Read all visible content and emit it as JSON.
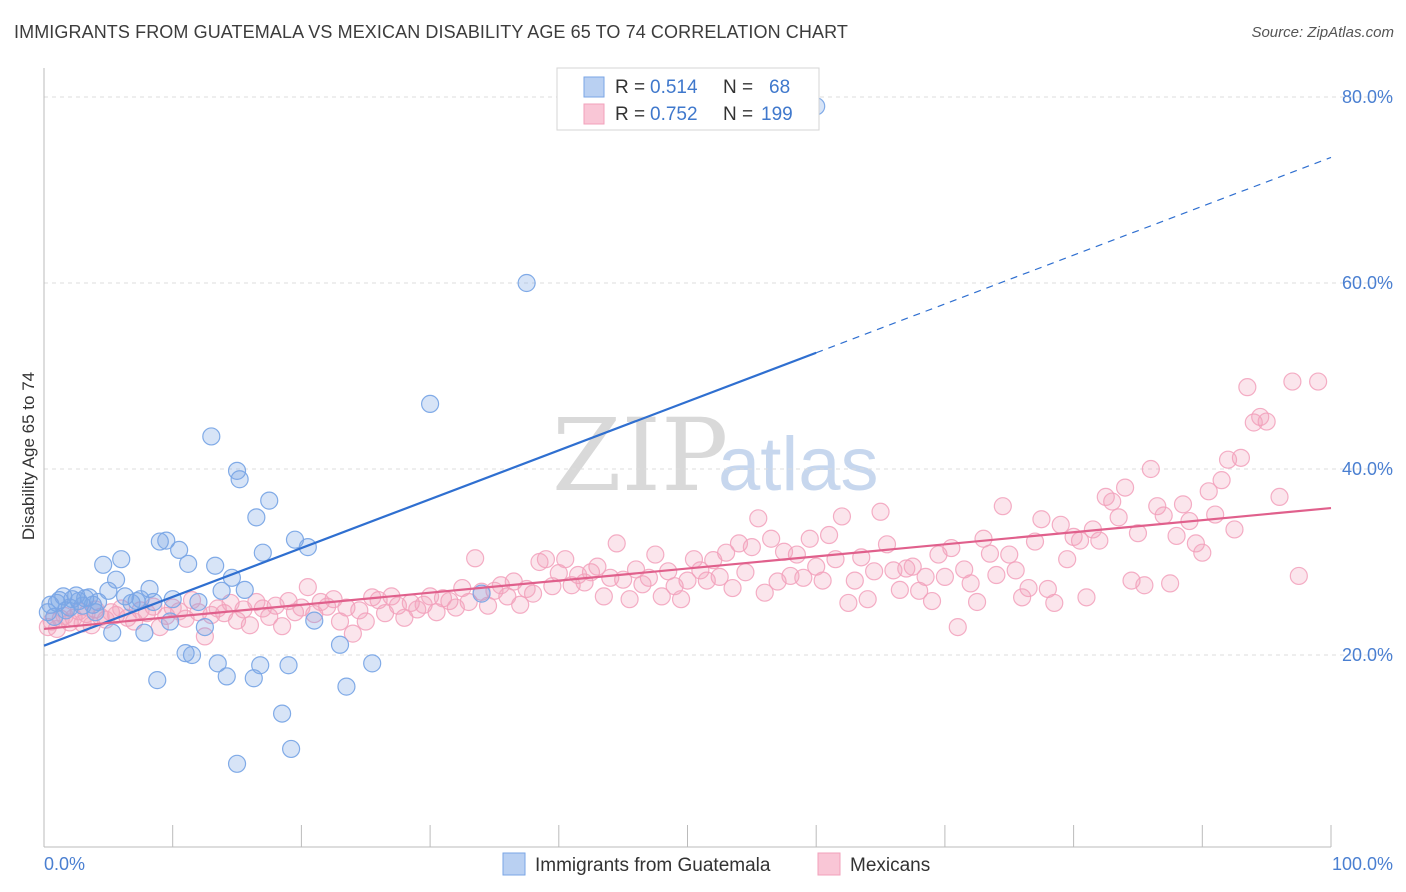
{
  "header": {
    "title": "IMMIGRANTS FROM GUATEMALA VS MEXICAN DISABILITY AGE 65 TO 74 CORRELATION CHART",
    "source": "Source: ZipAtlas.com"
  },
  "watermark": {
    "zip": "ZIP",
    "atlas": "atlas"
  },
  "legend": {
    "rows": [
      {
        "r_label": "R =",
        "r_value": "0.514",
        "n_label": "N =",
        "n_value": "68"
      },
      {
        "r_label": "R =",
        "r_value": "0.752",
        "n_label": "N =",
        "n_value": "199"
      }
    ]
  },
  "bottom_legend": {
    "items": [
      {
        "label": "Immigrants from Guatemala"
      },
      {
        "label": "Mexicans"
      }
    ]
  },
  "chart_data": {
    "type": "scatter",
    "title": "IMMIGRANTS FROM GUATEMALA VS MEXICAN DISABILITY AGE 65 TO 74 CORRELATION CHART",
    "xlabel": "",
    "ylabel": "Disability Age 65 to 74",
    "xlim": [
      0,
      100
    ],
    "ylim": [
      0,
      82
    ],
    "x_tick_labels": [
      "0.0%",
      "100.0%"
    ],
    "y_ticks": [
      20,
      40,
      60,
      80
    ],
    "y_tick_labels": [
      "20.0%",
      "40.0%",
      "60.0%",
      "80.0%"
    ],
    "grid": true,
    "legend_position": "top-center",
    "colors": {
      "guatemala": "#7aa6e6",
      "guatemala_line": "#2f6fd0",
      "mexicans": "#f2a0bb",
      "mexicans_line": "#e0608c"
    },
    "series": [
      {
        "name": "Immigrants from Guatemala",
        "r": 0.514,
        "n": 68,
        "trend": {
          "x": [
            0,
            60
          ],
          "y": [
            21.0,
            52.5
          ],
          "dashed_to": [
            100,
            73.5
          ]
        },
        "points": [
          [
            0.3,
            24.6
          ],
          [
            0.5,
            25.4
          ],
          [
            0.8,
            24.1
          ],
          [
            1.0,
            25.6
          ],
          [
            1.2,
            25.9
          ],
          [
            1.5,
            26.3
          ],
          [
            1.7,
            24.8
          ],
          [
            2.0,
            25.1
          ],
          [
            2.2,
            26.0
          ],
          [
            2.5,
            26.4
          ],
          [
            2.7,
            25.8
          ],
          [
            3.0,
            25.3
          ],
          [
            3.2,
            26.1
          ],
          [
            3.5,
            26.2
          ],
          [
            3.8,
            25.4
          ],
          [
            4.0,
            24.6
          ],
          [
            4.2,
            25.7
          ],
          [
            4.6,
            29.7
          ],
          [
            5.0,
            26.9
          ],
          [
            5.3,
            22.4
          ],
          [
            5.6,
            28.1
          ],
          [
            6.0,
            30.3
          ],
          [
            6.3,
            26.3
          ],
          [
            6.8,
            25.6
          ],
          [
            7.2,
            25.8
          ],
          [
            7.5,
            26.0
          ],
          [
            7.8,
            22.4
          ],
          [
            8.2,
            27.1
          ],
          [
            8.5,
            25.7
          ],
          [
            8.8,
            17.3
          ],
          [
            9.0,
            32.2
          ],
          [
            9.5,
            32.3
          ],
          [
            9.8,
            23.6
          ],
          [
            10.0,
            26.0
          ],
          [
            10.5,
            31.3
          ],
          [
            11.0,
            20.2
          ],
          [
            11.2,
            29.8
          ],
          [
            11.5,
            20.0
          ],
          [
            12.0,
            25.7
          ],
          [
            12.5,
            23.0
          ],
          [
            13.0,
            43.5
          ],
          [
            13.3,
            29.6
          ],
          [
            13.5,
            19.1
          ],
          [
            13.8,
            26.9
          ],
          [
            14.2,
            17.7
          ],
          [
            14.6,
            28.3
          ],
          [
            15.0,
            8.3
          ],
          [
            15.0,
            39.8
          ],
          [
            15.2,
            38.9
          ],
          [
            15.6,
            27.0
          ],
          [
            16.3,
            17.5
          ],
          [
            16.5,
            34.8
          ],
          [
            16.8,
            18.9
          ],
          [
            17.0,
            31.0
          ],
          [
            17.5,
            36.6
          ],
          [
            18.5,
            13.7
          ],
          [
            19.0,
            18.9
          ],
          [
            19.2,
            9.9
          ],
          [
            19.5,
            32.4
          ],
          [
            20.5,
            31.6
          ],
          [
            21.0,
            23.7
          ],
          [
            23.0,
            21.1
          ],
          [
            23.5,
            16.6
          ],
          [
            25.5,
            19.1
          ],
          [
            30.0,
            47.0
          ],
          [
            34.0,
            26.6
          ],
          [
            37.5,
            60.0
          ],
          [
            60.0,
            79.0
          ]
        ]
      },
      {
        "name": "Mexicans",
        "r": 0.752,
        "n": 199,
        "trend": {
          "x": [
            0,
            100
          ],
          "y": [
            22.8,
            35.8
          ]
        },
        "points": [
          [
            0.3,
            23.0
          ],
          [
            0.6,
            23.6
          ],
          [
            1.0,
            22.8
          ],
          [
            1.3,
            23.9
          ],
          [
            1.6,
            24.2
          ],
          [
            2.0,
            23.5
          ],
          [
            2.3,
            24.0
          ],
          [
            2.7,
            24.7
          ],
          [
            3.0,
            23.4
          ],
          [
            3.3,
            24.4
          ],
          [
            3.7,
            23.2
          ],
          [
            4.0,
            24.9
          ],
          [
            4.4,
            24.1
          ],
          [
            4.8,
            23.8
          ],
          [
            5.2,
            24.6
          ],
          [
            5.6,
            24.3
          ],
          [
            6.0,
            25.0
          ],
          [
            6.5,
            24.0
          ],
          [
            7.0,
            23.6
          ],
          [
            7.5,
            24.8
          ],
          [
            8.0,
            24.5
          ],
          [
            8.5,
            25.2
          ],
          [
            9.0,
            23.0
          ],
          [
            9.5,
            24.2
          ],
          [
            10.0,
            25.1
          ],
          [
            10.5,
            24.7
          ],
          [
            11.0,
            23.9
          ],
          [
            11.5,
            25.9
          ],
          [
            12.0,
            24.6
          ],
          [
            12.5,
            22.0
          ],
          [
            13.0,
            24.3
          ],
          [
            13.5,
            25.0
          ],
          [
            14.0,
            24.5
          ],
          [
            14.5,
            25.6
          ],
          [
            15.0,
            23.7
          ],
          [
            15.5,
            24.9
          ],
          [
            16.0,
            23.2
          ],
          [
            16.5,
            25.7
          ],
          [
            17.0,
            25.0
          ],
          [
            17.5,
            24.1
          ],
          [
            18.0,
            25.3
          ],
          [
            18.5,
            23.1
          ],
          [
            19.0,
            25.8
          ],
          [
            19.5,
            24.6
          ],
          [
            20.0,
            25.1
          ],
          [
            20.5,
            27.3
          ],
          [
            21.0,
            24.4
          ],
          [
            21.5,
            25.7
          ],
          [
            22.0,
            25.2
          ],
          [
            22.5,
            26.0
          ],
          [
            23.0,
            23.6
          ],
          [
            23.5,
            25.1
          ],
          [
            24.0,
            22.3
          ],
          [
            24.5,
            24.8
          ],
          [
            25.0,
            23.6
          ],
          [
            25.5,
            26.2
          ],
          [
            26.0,
            25.9
          ],
          [
            26.5,
            24.5
          ],
          [
            27.0,
            26.3
          ],
          [
            27.5,
            25.3
          ],
          [
            28.0,
            24.0
          ],
          [
            28.5,
            25.6
          ],
          [
            29.0,
            24.9
          ],
          [
            29.5,
            25.4
          ],
          [
            30.0,
            26.3
          ],
          [
            30.5,
            24.6
          ],
          [
            31.0,
            26.1
          ],
          [
            31.5,
            25.8
          ],
          [
            32.0,
            25.1
          ],
          [
            32.5,
            27.2
          ],
          [
            33.0,
            25.7
          ],
          [
            33.5,
            30.4
          ],
          [
            34.0,
            26.8
          ],
          [
            34.5,
            25.3
          ],
          [
            35.0,
            26.9
          ],
          [
            35.5,
            27.5
          ],
          [
            36.0,
            26.3
          ],
          [
            36.5,
            27.9
          ],
          [
            37.0,
            25.4
          ],
          [
            37.5,
            27.1
          ],
          [
            38.0,
            26.6
          ],
          [
            38.5,
            30.0
          ],
          [
            39.0,
            30.3
          ],
          [
            39.5,
            27.4
          ],
          [
            40.0,
            28.8
          ],
          [
            40.5,
            30.3
          ],
          [
            41.0,
            27.5
          ],
          [
            41.5,
            28.6
          ],
          [
            42.0,
            27.8
          ],
          [
            42.5,
            28.9
          ],
          [
            43.0,
            29.5
          ],
          [
            43.5,
            26.3
          ],
          [
            44.0,
            28.3
          ],
          [
            44.5,
            32.0
          ],
          [
            45.0,
            28.1
          ],
          [
            45.5,
            26.0
          ],
          [
            46.0,
            29.2
          ],
          [
            46.5,
            27.6
          ],
          [
            47.0,
            28.3
          ],
          [
            47.5,
            30.8
          ],
          [
            48.0,
            26.3
          ],
          [
            48.5,
            29.0
          ],
          [
            49.0,
            27.4
          ],
          [
            49.5,
            26.0
          ],
          [
            50.0,
            28.0
          ],
          [
            50.5,
            30.3
          ],
          [
            51.0,
            29.1
          ],
          [
            51.5,
            28.0
          ],
          [
            52.0,
            30.2
          ],
          [
            52.5,
            28.4
          ],
          [
            53.0,
            31.0
          ],
          [
            53.5,
            27.2
          ],
          [
            54.0,
            32.0
          ],
          [
            54.5,
            28.9
          ],
          [
            55.0,
            31.6
          ],
          [
            55.5,
            34.7
          ],
          [
            56.0,
            26.7
          ],
          [
            56.5,
            32.5
          ],
          [
            57.0,
            27.9
          ],
          [
            57.5,
            31.1
          ],
          [
            58.0,
            28.5
          ],
          [
            58.5,
            30.8
          ],
          [
            59.0,
            28.3
          ],
          [
            59.5,
            32.5
          ],
          [
            60.0,
            29.5
          ],
          [
            60.5,
            28.0
          ],
          [
            61.0,
            32.9
          ],
          [
            61.5,
            30.3
          ],
          [
            62.0,
            34.9
          ],
          [
            62.5,
            25.6
          ],
          [
            63.0,
            28.0
          ],
          [
            63.5,
            30.5
          ],
          [
            64.0,
            26.0
          ],
          [
            64.5,
            29.0
          ],
          [
            65.0,
            35.4
          ],
          [
            65.5,
            31.9
          ],
          [
            66.0,
            29.1
          ],
          [
            66.5,
            27.0
          ],
          [
            67.0,
            29.3
          ],
          [
            67.5,
            29.5
          ],
          [
            68.0,
            26.9
          ],
          [
            68.5,
            28.4
          ],
          [
            69.0,
            25.8
          ],
          [
            69.5,
            30.8
          ],
          [
            70.0,
            28.4
          ],
          [
            70.5,
            31.5
          ],
          [
            71.0,
            23.0
          ],
          [
            71.5,
            29.2
          ],
          [
            72.0,
            27.7
          ],
          [
            72.5,
            25.7
          ],
          [
            73.0,
            32.5
          ],
          [
            73.5,
            30.9
          ],
          [
            74.0,
            28.6
          ],
          [
            74.5,
            36.0
          ],
          [
            75.0,
            30.8
          ],
          [
            75.5,
            29.1
          ],
          [
            76.0,
            26.2
          ],
          [
            76.5,
            27.2
          ],
          [
            77.0,
            32.2
          ],
          [
            77.5,
            34.6
          ],
          [
            78.0,
            27.1
          ],
          [
            78.5,
            25.6
          ],
          [
            79.0,
            34.0
          ],
          [
            79.5,
            30.3
          ],
          [
            80.0,
            32.7
          ],
          [
            80.5,
            32.3
          ],
          [
            81.0,
            26.2
          ],
          [
            81.5,
            33.5
          ],
          [
            82.0,
            32.3
          ],
          [
            82.5,
            37.0
          ],
          [
            83.0,
            36.5
          ],
          [
            83.5,
            34.8
          ],
          [
            84.0,
            38.0
          ],
          [
            84.5,
            28.0
          ],
          [
            85.0,
            33.1
          ],
          [
            85.5,
            27.5
          ],
          [
            86.0,
            40.0
          ],
          [
            86.5,
            36.0
          ],
          [
            87.0,
            35.0
          ],
          [
            87.5,
            27.7
          ],
          [
            88.0,
            32.8
          ],
          [
            88.5,
            36.2
          ],
          [
            89.0,
            34.4
          ],
          [
            89.5,
            32.0
          ],
          [
            90.0,
            31.0
          ],
          [
            90.5,
            37.6
          ],
          [
            91.0,
            35.1
          ],
          [
            91.5,
            38.8
          ],
          [
            92.0,
            41.0
          ],
          [
            92.5,
            33.5
          ],
          [
            93.0,
            41.2
          ],
          [
            93.5,
            48.8
          ],
          [
            94.0,
            45.0
          ],
          [
            94.5,
            45.6
          ],
          [
            95.0,
            45.1
          ],
          [
            96.0,
            37.0
          ],
          [
            97.0,
            49.4
          ],
          [
            97.5,
            28.5
          ],
          [
            99.0,
            49.4
          ]
        ]
      }
    ]
  }
}
